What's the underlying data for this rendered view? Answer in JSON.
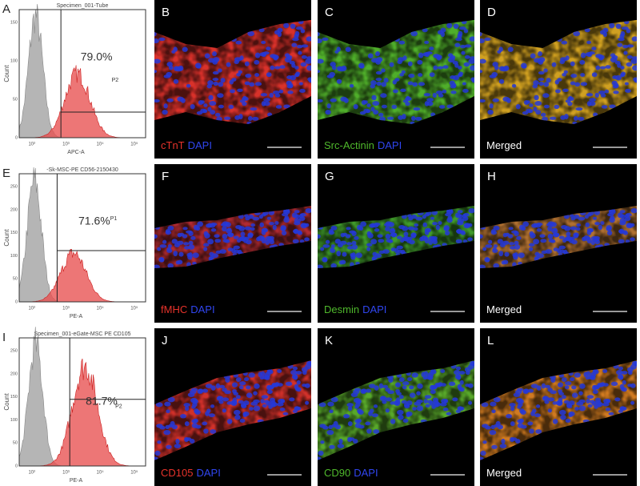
{
  "histograms": [
    {
      "letter": "A",
      "title": "Specimen_001-Tube",
      "percent": "79.0%",
      "gate": "P2",
      "ylabel": "Count",
      "xlabel": "APC-A",
      "xticks": [
        "10²",
        "10³",
        "10⁴",
        "10⁵"
      ],
      "yticks": [
        "0",
        "50",
        "100",
        "150"
      ]
    },
    {
      "letter": "E",
      "title": "-Sk-MSC-PE CD56-2150430",
      "percent": "71.6%",
      "gate": "P1",
      "ylabel": "Count",
      "xlabel": "PE-A",
      "xticks": [
        "10²",
        "10³",
        "10⁴",
        "10⁵"
      ],
      "yticks": [
        "0",
        "50",
        "100",
        "150",
        "200",
        "250"
      ]
    },
    {
      "letter": "I",
      "title": "Specimen_001-eGate-MSC PE CD105",
      "percent": "81.7%",
      "gate": "P2",
      "ylabel": "Count",
      "xlabel": "PE-A",
      "xticks": [
        "10²",
        "10³",
        "10⁴",
        "10⁵"
      ],
      "yticks": [
        "0",
        "50",
        "100",
        "150",
        "200",
        "250"
      ]
    }
  ],
  "images": [
    {
      "letter": "B",
      "tint": "#d8302a",
      "label": [
        {
          "text": "cTnT",
          "color": "#e8332b"
        },
        {
          "text": "DAPI",
          "color": "#3046f0"
        }
      ]
    },
    {
      "letter": "C",
      "tint": "#4fae2a",
      "label": [
        {
          "text": "Src-Actinin",
          "color": "#4fb82c"
        },
        {
          "text": "DAPI",
          "color": "#3046f0"
        }
      ]
    },
    {
      "letter": "D",
      "tint": "#d0a020",
      "label": [
        {
          "text": "Merged",
          "color": "#ffffff"
        }
      ]
    },
    {
      "letter": "F",
      "tint": "#b02a30",
      "label": [
        {
          "text": "fMHC",
          "color": "#e8332b"
        },
        {
          "text": "DAPI",
          "color": "#3046f0"
        }
      ]
    },
    {
      "letter": "G",
      "tint": "#3f9a2a",
      "label": [
        {
          "text": "Desmin",
          "color": "#4fb82c"
        },
        {
          "text": "DAPI",
          "color": "#3046f0"
        }
      ]
    },
    {
      "letter": "H",
      "tint": "#b07030",
      "label": [
        {
          "text": "Merged",
          "color": "#ffffff"
        }
      ]
    },
    {
      "letter": "J",
      "tint": "#d0302a",
      "label": [
        {
          "text": "CD105",
          "color": "#e8332b"
        },
        {
          "text": "DAPI",
          "color": "#3046f0"
        }
      ]
    },
    {
      "letter": "K",
      "tint": "#58a82a",
      "label": [
        {
          "text": "CD90",
          "color": "#4fb82c"
        },
        {
          "text": "DAPI",
          "color": "#3046f0"
        }
      ]
    },
    {
      "letter": "L",
      "tint": "#d07a20",
      "label": [
        {
          "text": "Merged",
          "color": "#ffffff"
        }
      ]
    }
  ]
}
